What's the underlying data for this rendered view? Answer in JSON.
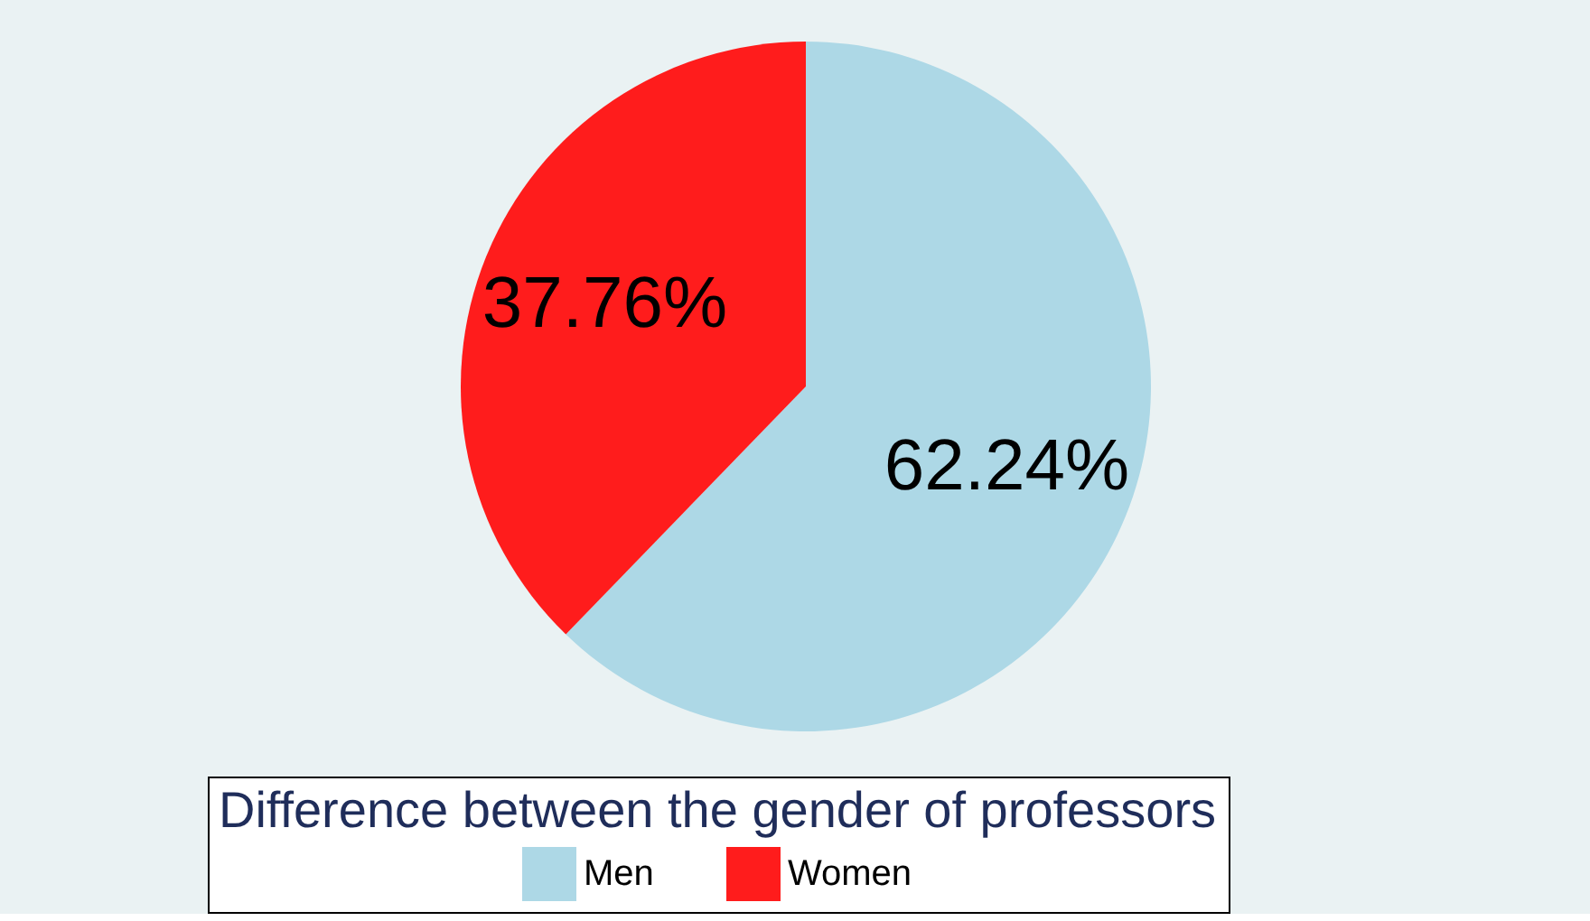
{
  "chart_data": {
    "type": "pie",
    "legend_title": "Difference between the gender of professors",
    "categories": [
      "Men",
      "Women"
    ],
    "values": [
      62.24,
      37.76
    ],
    "colors": [
      "#add8e6",
      "#ff1c1c"
    ],
    "value_labels": [
      "62.24%",
      "37.76%"
    ],
    "legend": "bottom"
  }
}
